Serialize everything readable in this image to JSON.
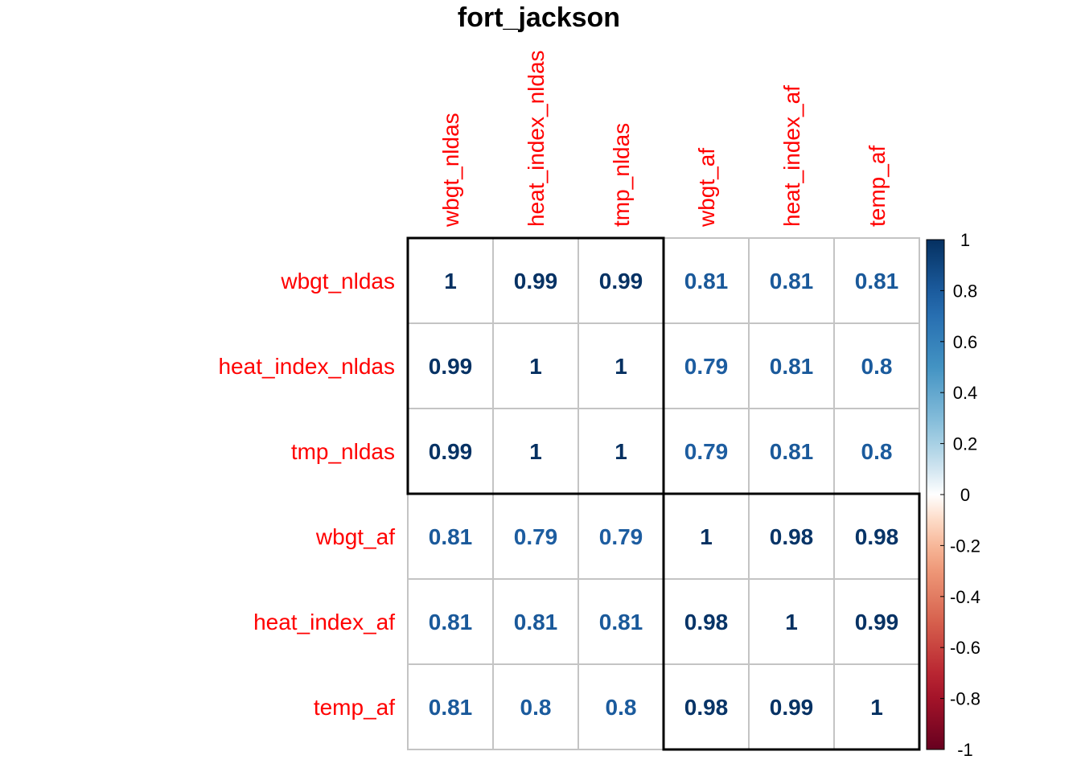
{
  "chart_data": {
    "type": "heatmap",
    "title": "fort_jackson",
    "variables": [
      "wbgt_nldas",
      "heat_index_nldas",
      "tmp_nldas",
      "wbgt_af",
      "heat_index_af",
      "temp_af"
    ],
    "matrix": [
      [
        "1",
        "0.99",
        "0.99",
        "0.81",
        "0.81",
        "0.81"
      ],
      [
        "0.99",
        "1",
        "1",
        "0.79",
        "0.81",
        "0.8"
      ],
      [
        "0.99",
        "1",
        "1",
        "0.79",
        "0.81",
        "0.8"
      ],
      [
        "0.81",
        "0.79",
        "0.79",
        "1",
        "0.98",
        "0.98"
      ],
      [
        "0.81",
        "0.81",
        "0.81",
        "0.98",
        "1",
        "0.99"
      ],
      [
        "0.81",
        "0.8",
        "0.8",
        "0.98",
        "0.99",
        "1"
      ]
    ],
    "clusters": [
      {
        "start": 0,
        "end": 2
      },
      {
        "start": 3,
        "end": 5
      }
    ],
    "colorbar": {
      "ticks": [
        "1",
        "0.8",
        "0.6",
        "0.4",
        "0.2",
        "0",
        "-0.2",
        "-0.4",
        "-0.6",
        "-0.8",
        "-1"
      ],
      "range": [
        -1,
        1
      ],
      "position": "right"
    },
    "label_color": "#ff0000"
  }
}
